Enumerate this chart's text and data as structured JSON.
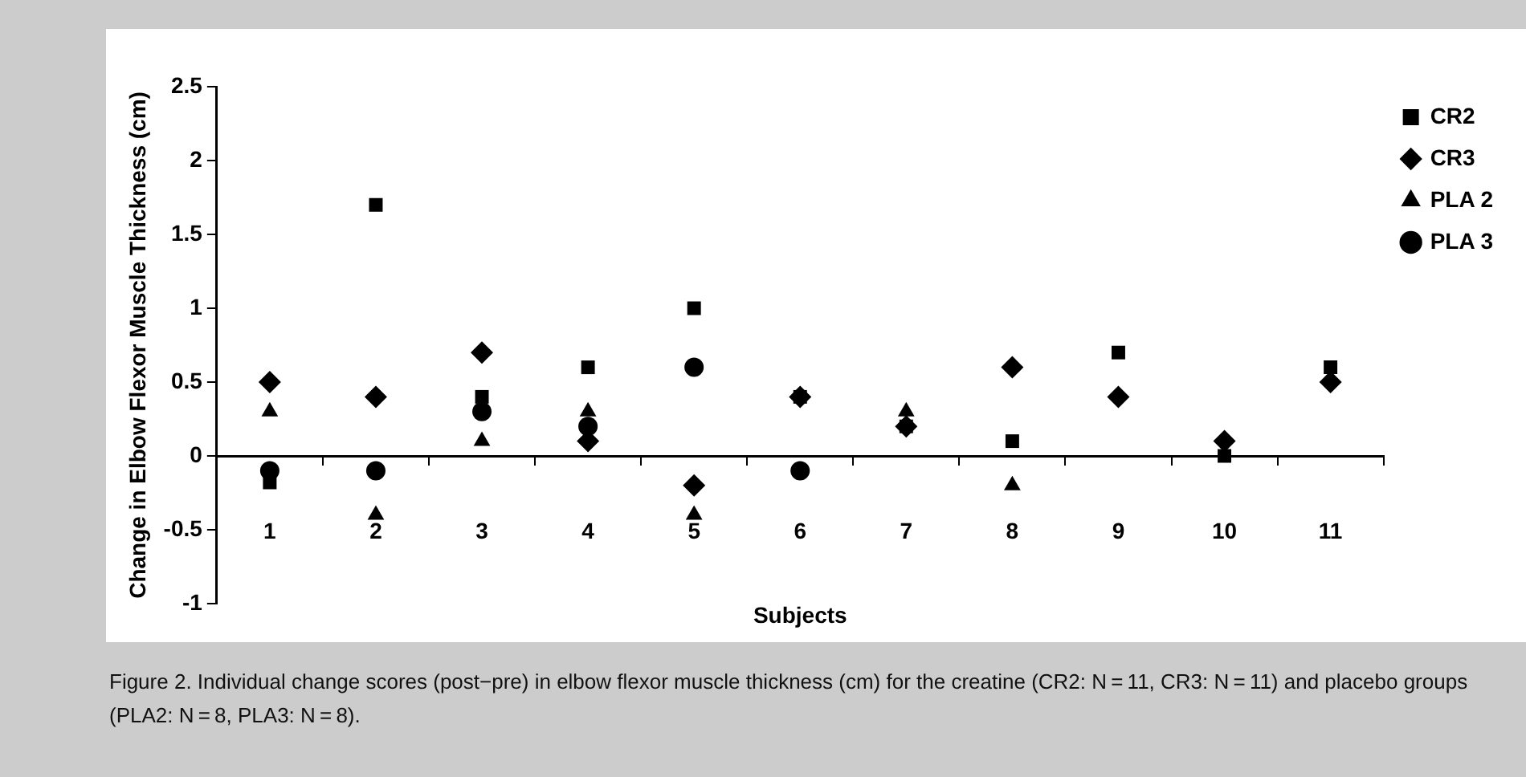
{
  "chart_data": {
    "type": "scatter",
    "xlabel": "Subjects",
    "ylabel": "Change in Elbow Flexor Muscle Thickness (cm)",
    "categories": [
      "1",
      "2",
      "3",
      "4",
      "5",
      "6",
      "7",
      "8",
      "9",
      "10",
      "11"
    ],
    "series": [
      {
        "name": "CR2",
        "color": "#000000",
        "marker": "square",
        "values": [
          -0.18,
          1.7,
          0.4,
          0.6,
          1.0,
          0.4,
          0.2,
          0.1,
          0.7,
          0.0,
          0.6
        ]
      },
      {
        "name": "CR3",
        "color": "#000000",
        "marker": "diamond",
        "values": [
          0.5,
          0.4,
          0.7,
          0.1,
          -0.2,
          0.4,
          0.2,
          0.6,
          0.4,
          0.1,
          0.5
        ]
      },
      {
        "name": "PLA 2",
        "color": "#000000",
        "marker": "triangle",
        "values": [
          0.3,
          -0.4,
          0.1,
          0.3,
          -0.4,
          null,
          0.3,
          -0.2,
          null,
          null,
          null
        ]
      },
      {
        "name": "PLA 3",
        "color": "#000000",
        "marker": "circle",
        "values": [
          -0.1,
          -0.1,
          0.3,
          0.2,
          0.6,
          -0.1,
          null,
          null,
          null,
          null,
          null
        ]
      }
    ],
    "ylim": [
      -1,
      2.5
    ],
    "yticks": [
      -1,
      -0.5,
      0,
      0.5,
      1,
      1.5,
      2,
      2.5
    ],
    "legend": "top right",
    "annotations": [
      "Figure 2. Individual change scores (post−pre) in elbow flexor muscle thickness (cm) for the creatine (CR2: N = 11, CR3: N = 11) and placebo groups (PLA2: N = 8, PLA3: N = 8)."
    ]
  }
}
